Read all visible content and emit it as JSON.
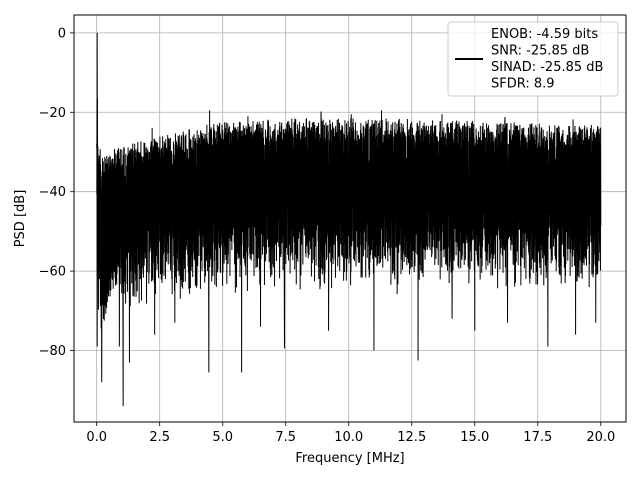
{
  "chart_data": {
    "type": "line",
    "title": "",
    "xlabel": "Frequency [MHz]",
    "ylabel": "PSD [dB]",
    "xlim": [
      -0.9,
      21.0
    ],
    "ylim": [
      -98,
      4.5
    ],
    "x_ticks": [
      0.0,
      2.5,
      5.0,
      7.5,
      10.0,
      12.5,
      15.0,
      17.5,
      20.0
    ],
    "x_tick_labels": [
      "0.0",
      "2.5",
      "5.0",
      "7.5",
      "10.0",
      "12.5",
      "15.0",
      "17.5",
      "20.0"
    ],
    "y_ticks": [
      0,
      -20,
      -40,
      -60,
      -80
    ],
    "y_tick_labels": [
      "0",
      "−20",
      "−40",
      "−60",
      "−80"
    ],
    "grid": true,
    "legend_position": "top-right",
    "legend_entries": [
      "ENOB: -4.59 bits",
      "SNR: -25.85 dB",
      "SINAD: -25.85 dB",
      "SFDR: 8.9"
    ],
    "line_color": "#000000",
    "series": [
      {
        "x": [
          0.0,
          0.02,
          0.04,
          0.06,
          0.1,
          0.16,
          0.25,
          0.5,
          0.75,
          1.0,
          1.25,
          1.5,
          2.0,
          2.5,
          3.0,
          3.5,
          4.0,
          4.5,
          5.0,
          5.5,
          6.0,
          7.0,
          8.0,
          9.0,
          10.0,
          11.0,
          12.0,
          13.0,
          14.0,
          15.0,
          16.0,
          17.0,
          18.0,
          19.0,
          20.0
        ],
        "upper": [
          -24,
          0,
          -27,
          -28,
          -28,
          -29,
          -30,
          -29.5,
          -29,
          -28.5,
          -28,
          -27.5,
          -27,
          -26,
          -25,
          -24.5,
          -23.5,
          -23,
          -22.5,
          -22,
          -22,
          -21.5,
          -21.5,
          -21.5,
          -21.5,
          -21.5,
          -21.5,
          -22,
          -22,
          -22,
          -22.5,
          -22.5,
          -23,
          -23,
          -23
        ],
        "lower": [
          -54,
          -50,
          -66,
          -70,
          -72,
          -74,
          -73,
          -70,
          -68,
          -67,
          -66,
          -65,
          -64,
          -63,
          -62,
          -62,
          -61,
          -61,
          -61,
          -60.5,
          -60.5,
          -60,
          -60,
          -60,
          -60,
          -60,
          -60,
          -60,
          -60,
          -60,
          -60,
          -60,
          -60,
          -60,
          -60
        ],
        "peaks": [
          [
            4.48,
            -19.5
          ],
          [
            8.9,
            -19.8
          ],
          [
            11.3,
            -19.5
          ],
          [
            2.2,
            -24
          ],
          [
            6.0,
            -21
          ],
          [
            10.1,
            -20.5
          ],
          [
            13.7,
            -20.5
          ],
          [
            16.2,
            -21.2
          ],
          [
            18.9,
            -21.8
          ]
        ],
        "dips": [
          [
            0.02,
            -79
          ],
          [
            0.2,
            -88
          ],
          [
            0.9,
            -79
          ],
          [
            1.05,
            -94
          ],
          [
            1.3,
            -83
          ],
          [
            4.45,
            -85.5
          ],
          [
            5.75,
            -85.5
          ],
          [
            7.45,
            -79.5
          ],
          [
            11.0,
            -80
          ],
          [
            12.75,
            -82.5
          ],
          [
            2.3,
            -76
          ],
          [
            3.1,
            -73
          ],
          [
            6.5,
            -74
          ],
          [
            9.2,
            -75
          ],
          [
            14.1,
            -72
          ],
          [
            15.0,
            -75
          ],
          [
            16.3,
            -73
          ],
          [
            17.9,
            -79
          ],
          [
            19.0,
            -76
          ],
          [
            19.8,
            -73
          ]
        ]
      }
    ]
  }
}
